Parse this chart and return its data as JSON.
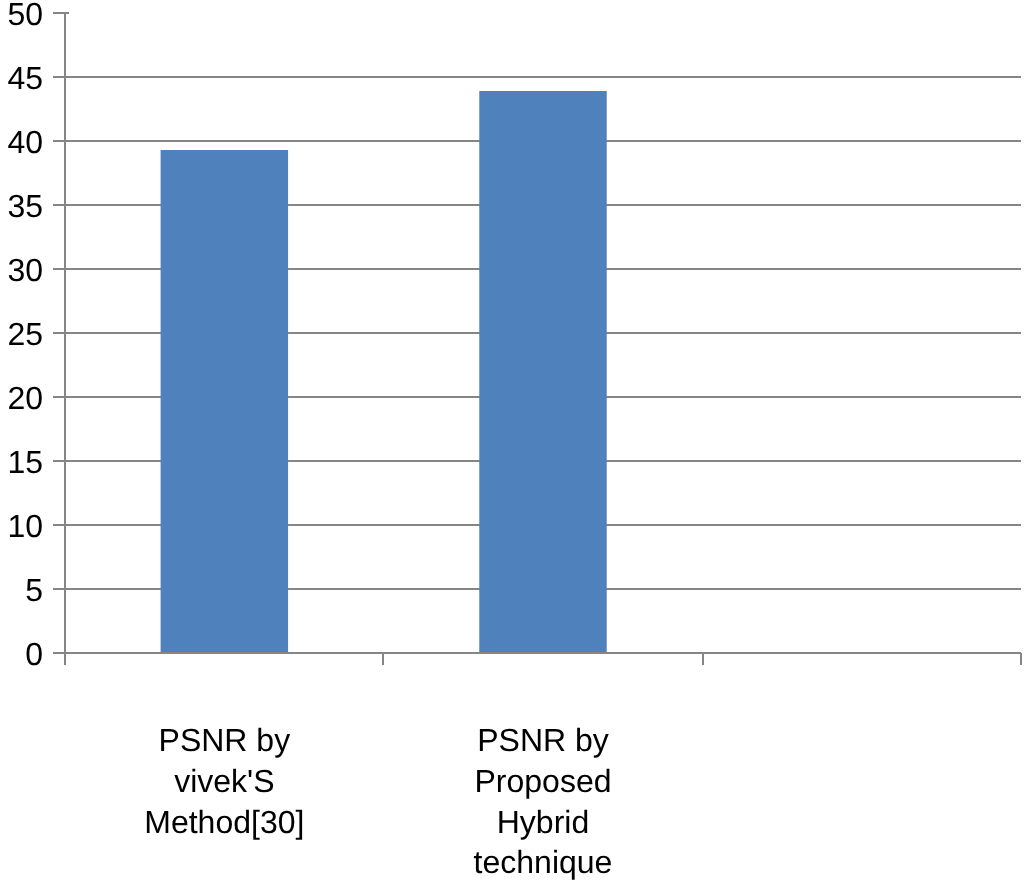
{
  "chart_data": {
    "type": "bar",
    "categories": [
      "PSNR by vivek'S Method[30]",
      "PSNR by Proposed Hybrid technique",
      null
    ],
    "values": [
      39.3,
      43.9,
      null
    ],
    "color": "#4f81bd",
    "ylim": [
      0,
      50
    ],
    "yticks": [
      0,
      5,
      10,
      15,
      20,
      25,
      30,
      35,
      40,
      45,
      50
    ],
    "grid": "y"
  }
}
